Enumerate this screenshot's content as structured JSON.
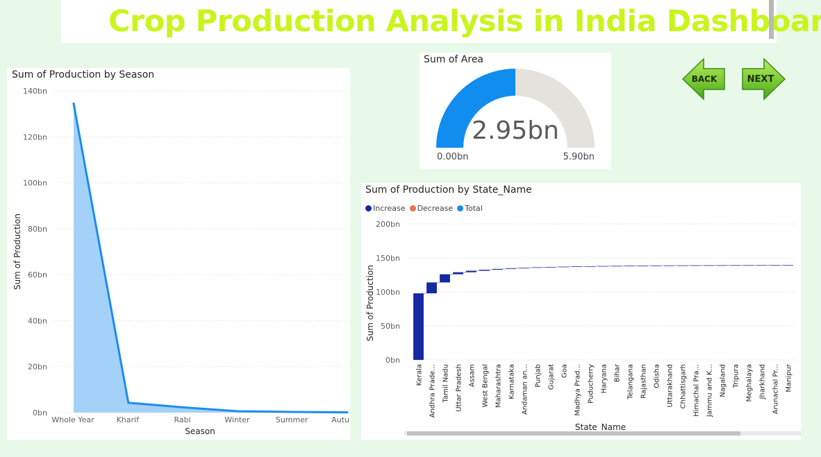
{
  "dashboard": {
    "title": "Crop Production Analysis in India Dashboard",
    "back_label": "BACK",
    "next_label": "NEXT"
  },
  "colors": {
    "background": "#e8f9ea",
    "title": "#c8f51c",
    "line": "#1a8cf0",
    "area_fill": "#9fcff8",
    "increase": "#1728a3",
    "decrease": "#e8734a",
    "total": "#1a8cf0",
    "gauge_fill": "#118df0",
    "gauge_track": "#e5e1dc",
    "button_green": "#7dd62c"
  },
  "chart_data": [
    {
      "id": "season",
      "type": "area",
      "title": "Sum of Production by Season",
      "xlabel": "Season",
      "ylabel": "Sum of Production",
      "categories": [
        "Whole Year",
        "Kharif",
        "Rabi",
        "Winter",
        "Summer",
        "Autumn"
      ],
      "values": [
        134.5,
        4.3,
        2.3,
        0.6,
        0.3,
        0.1
      ],
      "yticks": [
        "0bn",
        "20bn",
        "40bn",
        "60bn",
        "80bn",
        "100bn",
        "120bn",
        "140bn"
      ],
      "ylim": [
        0,
        140
      ],
      "grid": true
    },
    {
      "id": "area",
      "type": "gauge",
      "title": "Sum of Area",
      "value": 2.95,
      "value_label": "2.95bn",
      "min": 0,
      "min_label": "0.00bn",
      "max": 5.9,
      "max_label": "5.90bn"
    },
    {
      "id": "state",
      "type": "waterfall",
      "title": "Sum of Production by State_Name",
      "xlabel": "State_Name",
      "ylabel": "Sum of Production",
      "legend": [
        "Increase",
        "Decrease",
        "Total"
      ],
      "legend_position": "top-left",
      "categories": [
        "Kerala",
        "Andhra Prade...",
        "Tamil Nadu",
        "Uttar Pradesh",
        "Assam",
        "West Bengal",
        "Maharashtra",
        "Karnataka",
        "Andaman an...",
        "Punjab",
        "Gujarat",
        "Goa",
        "Madhya Prad...",
        "Puducherry",
        "Haryana",
        "Bihar",
        "Telangana",
        "Rajasthan",
        "Odisha",
        "Uttarakhand",
        "Chhattisgarh",
        "Himachal Pra...",
        "Jammu and K...",
        "Nagaland",
        "Tripura",
        "Meghalaya",
        "Jharkhand",
        "Arunachal Pr...",
        "Manipur"
      ],
      "values": [
        98,
        16,
        12,
        3,
        2.2,
        1.5,
        1.2,
        1.0,
        0.8,
        0.6,
        0.5,
        0.4,
        0.35,
        0.3,
        0.28,
        0.25,
        0.2,
        0.18,
        0.15,
        0.12,
        0.1,
        0.08,
        0.07,
        0.06,
        0.05,
        0.04,
        0.03,
        0.02,
        0.01
      ],
      "yticks": [
        "0bn",
        "50bn",
        "100bn",
        "150bn",
        "200bn"
      ],
      "ylim": [
        0,
        200
      ],
      "grid": true
    }
  ]
}
